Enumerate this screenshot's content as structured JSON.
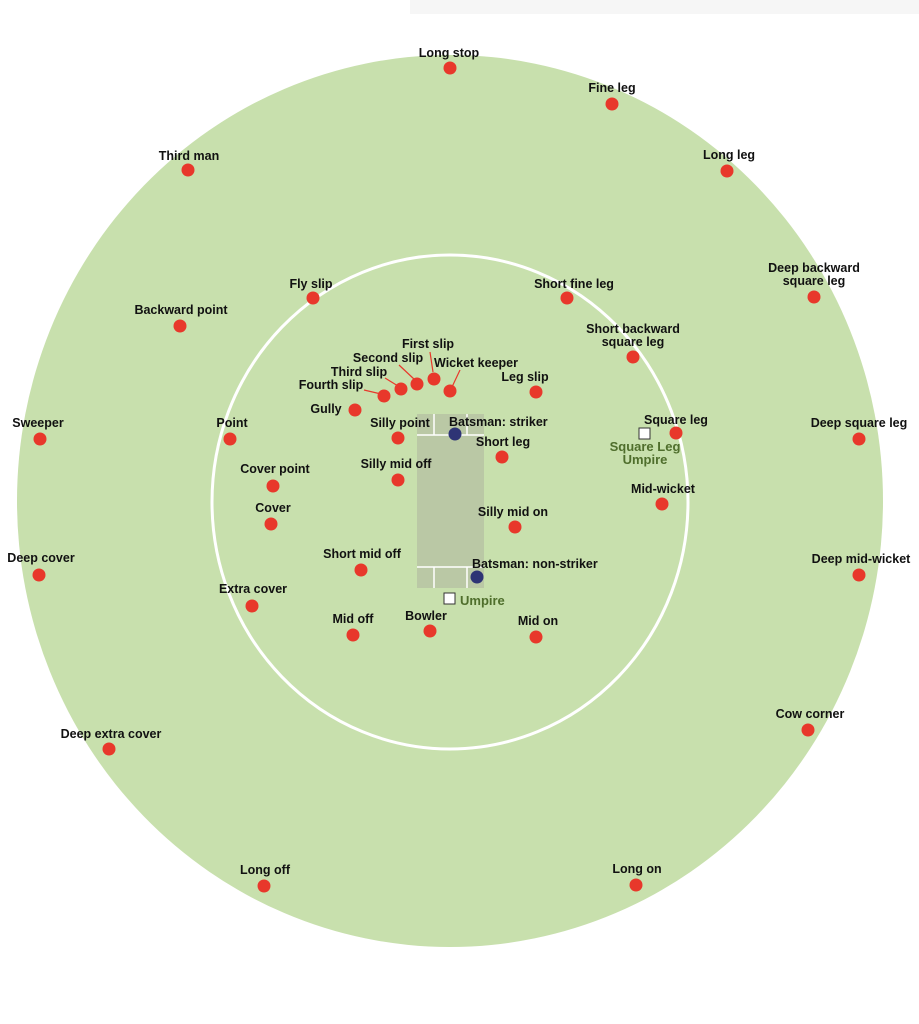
{
  "colors": {
    "field": "#c8e0ad",
    "inner_ring": "#ffffff",
    "pitch": "#bac8a5",
    "fielder": "#e8382b",
    "batsman": "#2e3475",
    "umpire_text": "#4f6e2c",
    "label": "#111111"
  },
  "fielders": {
    "long_stop": "Long stop",
    "fine_leg": "Fine leg",
    "long_leg": "Long leg",
    "third_man": "Third man",
    "deep_backward_square_leg": [
      "Deep backward",
      "square leg"
    ],
    "fly_slip": "Fly slip",
    "short_fine_leg": "Short fine leg",
    "backward_point": "Backward point",
    "short_backward_square_leg": [
      "Short backward",
      "square leg"
    ],
    "first_slip": "First slip",
    "second_slip": "Second slip",
    "third_slip": "Third slip",
    "wicket_keeper": "Wicket keeper",
    "fourth_slip": "Fourth slip",
    "leg_slip": "Leg slip",
    "gully": "Gully",
    "sweeper": "Sweeper",
    "point": "Point",
    "silly_point": "Silly point",
    "square_leg": "Square leg",
    "deep_square_leg": "Deep square leg",
    "short_leg": "Short leg",
    "silly_mid_off": "Silly mid off",
    "cover_point": "Cover point",
    "mid_wicket": "Mid-wicket",
    "cover": "Cover",
    "silly_mid_on": "Silly mid on",
    "short_mid_off": "Short mid off",
    "deep_cover": "Deep cover",
    "deep_mid_wicket": "Deep mid-wicket",
    "extra_cover": "Extra cover",
    "mid_off": "Mid off",
    "bowler": "Bowler",
    "mid_on": "Mid on",
    "cow_corner": "Cow  corner",
    "deep_extra_cover": "Deep extra cover",
    "long_off": "Long off",
    "long_on": "Long on"
  },
  "batsmen": {
    "striker": "Batsman: striker",
    "non_striker": "Batsman: non-striker"
  },
  "umpires": {
    "square_leg_umpire": [
      "Square Leg",
      "Umpire"
    ],
    "umpire": "Umpire"
  }
}
